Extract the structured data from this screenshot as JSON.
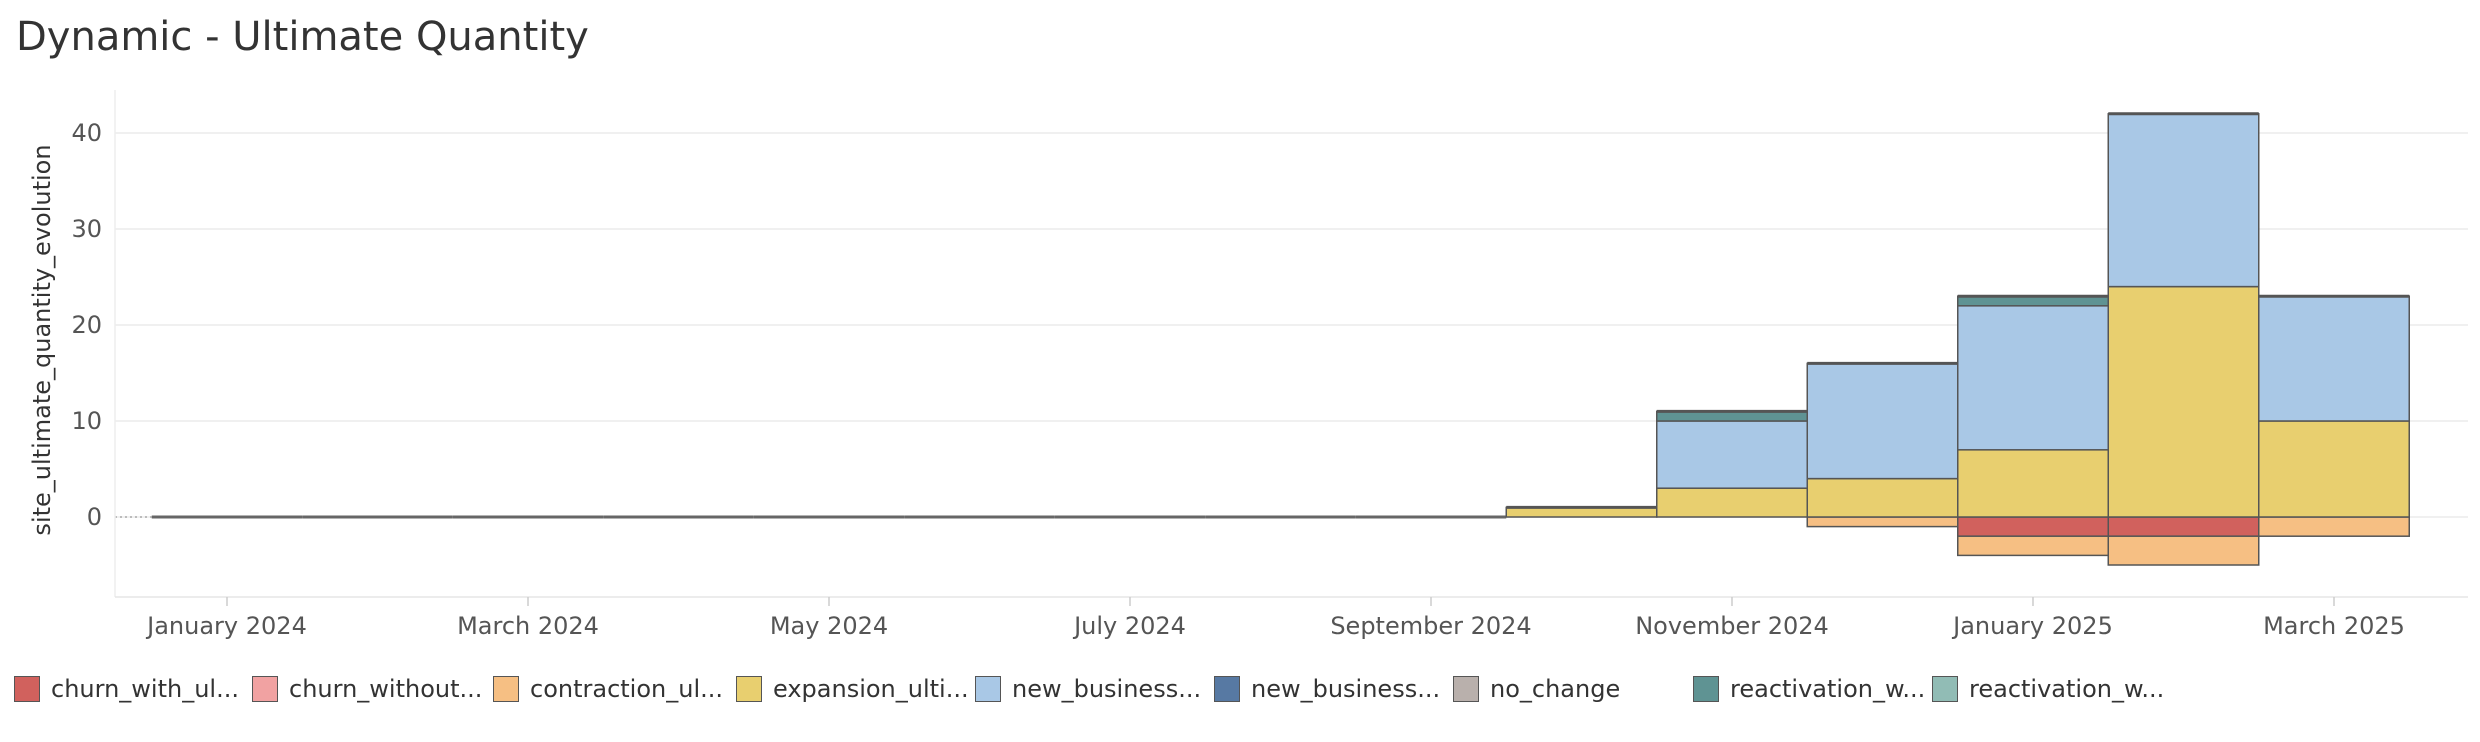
{
  "title": "Dynamic - Ultimate Quantity",
  "chart_data": {
    "type": "bar",
    "stacked": true,
    "ylabel": "site_ultimate_quantity_evolution",
    "ylim": [
      -8,
      45
    ],
    "yticks": [
      0,
      10,
      20,
      30,
      40
    ],
    "xticks": [
      "January 2024",
      "March 2024",
      "May 2024",
      "July 2024",
      "September 2024",
      "November 2024",
      "January 2025",
      "March 2025"
    ],
    "categories": [
      "January 2024",
      "February 2024",
      "March 2024",
      "April 2024",
      "May 2024",
      "June 2024",
      "July 2024",
      "August 2024",
      "September 2024",
      "October 2024",
      "November 2024",
      "December 2024",
      "January 2025",
      "February 2025",
      "March 2025"
    ],
    "grid": true,
    "legend_position": "bottom",
    "series": [
      {
        "name": "churn_with_ul...",
        "color": "#d1615d",
        "values": [
          0,
          0,
          0,
          0,
          0,
          0,
          0,
          0,
          0,
          0,
          0,
          0,
          -2,
          -2,
          0
        ]
      },
      {
        "name": "churn_without...",
        "color": "#f1a2a2",
        "values": [
          0,
          0,
          0,
          0,
          0,
          0,
          0,
          0,
          0,
          0,
          0,
          0,
          0,
          0,
          0
        ]
      },
      {
        "name": "contraction_ul...",
        "color": "#f6bf83",
        "values": [
          0,
          0,
          0,
          0,
          0,
          0,
          0,
          0,
          0,
          0,
          0,
          -1,
          -2,
          -3,
          -2
        ]
      },
      {
        "name": "expansion_ulti...",
        "color": "#e8cf6f",
        "values": [
          0,
          0,
          0,
          0,
          0,
          0,
          0,
          0,
          0,
          1,
          3,
          4,
          7,
          24,
          10
        ]
      },
      {
        "name": "new_business...",
        "color": "#a9c8e6",
        "values": [
          0,
          0,
          0,
          0,
          0,
          0,
          0,
          0,
          0,
          0,
          7,
          12,
          15,
          18,
          13
        ]
      },
      {
        "name": "new_business...",
        "color": "#5779a3",
        "values": [
          0,
          0,
          0,
          0,
          0,
          0,
          0,
          0,
          0,
          0,
          0,
          0,
          0,
          0,
          0
        ]
      },
      {
        "name": "no_change",
        "color": "#b9b0ac",
        "values": [
          0,
          0,
          0,
          0,
          0,
          0,
          0,
          0,
          0,
          0,
          0,
          0,
          0,
          0,
          0
        ]
      },
      {
        "name": "reactivation_w...",
        "color": "#5f9393",
        "values": [
          0,
          0,
          0,
          0,
          0,
          0,
          0,
          0,
          0,
          0,
          1,
          0,
          1,
          0,
          0
        ]
      },
      {
        "name": "reactivation_w...",
        "color": "#91bcb5",
        "values": [
          0,
          0,
          0,
          0,
          0,
          0,
          0,
          0,
          0,
          0,
          0,
          0,
          0,
          0,
          0
        ]
      }
    ]
  }
}
